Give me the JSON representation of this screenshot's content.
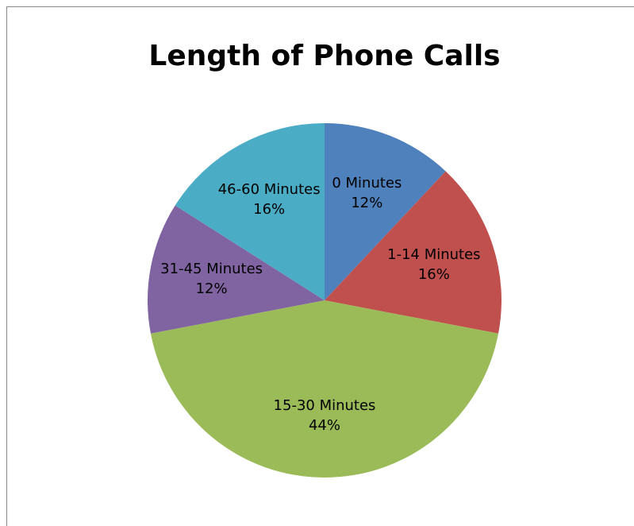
{
  "chart_data": {
    "type": "pie",
    "title": "Length of Phone Calls",
    "categories": [
      "0 Minutes",
      "1-14 Minutes",
      "15-30 Minutes",
      "31-45 Minutes",
      "46-60 Minutes"
    ],
    "values": [
      12,
      16,
      44,
      12,
      16
    ],
    "value_labels": [
      "12%",
      "16%",
      "44%",
      "12%",
      "16%"
    ],
    "colors": [
      "#4f81bd",
      "#c0504d",
      "#9bbb59",
      "#8064a2",
      "#4bacc6"
    ]
  }
}
